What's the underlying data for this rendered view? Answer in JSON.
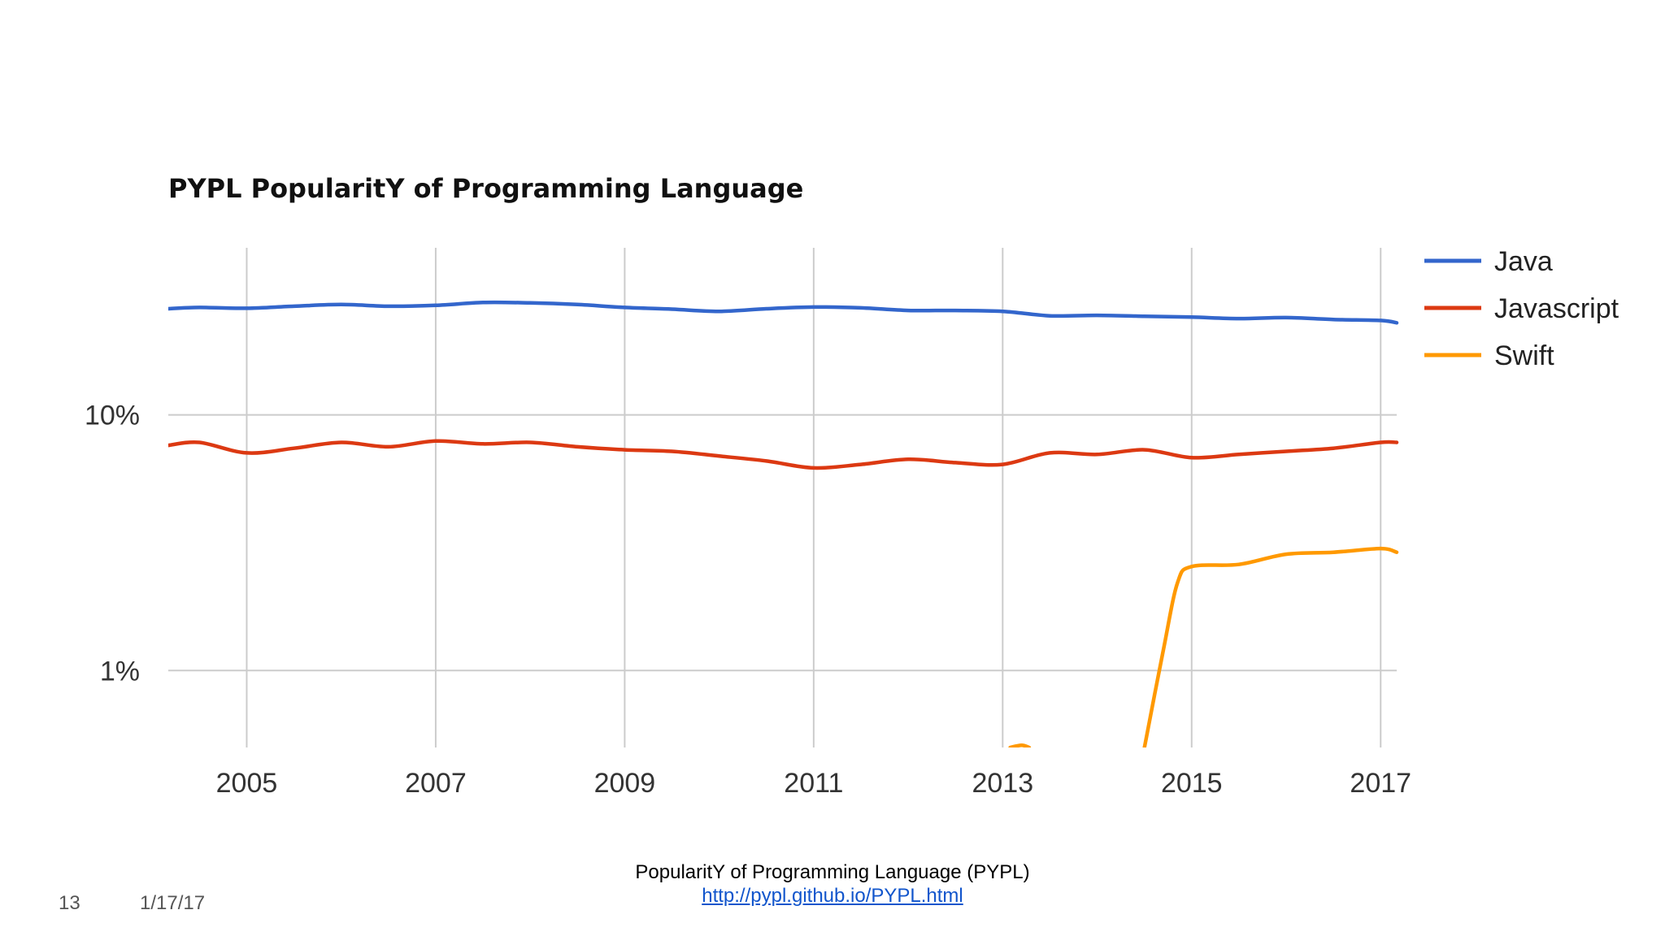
{
  "chart_data": {
    "type": "line",
    "title": "PYPL PopularitY of Programming Language",
    "y_scale": "log",
    "ylim": [
      0.5,
      45
    ],
    "xlim": [
      2004.17,
      2017.17
    ],
    "y_ticks": [
      {
        "value": 1,
        "label": "1%"
      },
      {
        "value": 10,
        "label": "10%"
      }
    ],
    "x_ticks": [
      {
        "value": 2005,
        "label": "2005"
      },
      {
        "value": 2007,
        "label": "2007"
      },
      {
        "value": 2009,
        "label": "2009"
      },
      {
        "value": 2011,
        "label": "2011"
      },
      {
        "value": 2013,
        "label": "2013"
      },
      {
        "value": 2015,
        "label": "2015"
      },
      {
        "value": 2017,
        "label": "2017"
      }
    ],
    "grid": true,
    "legend": "right",
    "series": [
      {
        "name": "Java",
        "color": "#3366cc",
        "points": [
          [
            2004.17,
            26.0
          ],
          [
            2004.5,
            26.3
          ],
          [
            2005.0,
            26.1
          ],
          [
            2005.5,
            26.6
          ],
          [
            2006.0,
            27.0
          ],
          [
            2006.5,
            26.6
          ],
          [
            2007.0,
            26.8
          ],
          [
            2007.5,
            27.5
          ],
          [
            2008.0,
            27.4
          ],
          [
            2008.5,
            27.0
          ],
          [
            2009.0,
            26.3
          ],
          [
            2009.5,
            25.9
          ],
          [
            2010.0,
            25.4
          ],
          [
            2010.5,
            26.0
          ],
          [
            2011.0,
            26.4
          ],
          [
            2011.5,
            26.2
          ],
          [
            2012.0,
            25.6
          ],
          [
            2012.5,
            25.6
          ],
          [
            2013.0,
            25.4
          ],
          [
            2013.5,
            24.4
          ],
          [
            2014.0,
            24.5
          ],
          [
            2014.5,
            24.3
          ],
          [
            2015.0,
            24.1
          ],
          [
            2015.5,
            23.8
          ],
          [
            2016.0,
            24.0
          ],
          [
            2016.5,
            23.6
          ],
          [
            2017.0,
            23.4
          ],
          [
            2017.17,
            22.9
          ]
        ]
      },
      {
        "name": "Javascript",
        "color": "#dc3912",
        "points": [
          [
            2004.17,
            7.6
          ],
          [
            2004.5,
            7.8
          ],
          [
            2005.0,
            7.1
          ],
          [
            2005.5,
            7.4
          ],
          [
            2006.0,
            7.8
          ],
          [
            2006.5,
            7.5
          ],
          [
            2007.0,
            7.9
          ],
          [
            2007.5,
            7.7
          ],
          [
            2008.0,
            7.8
          ],
          [
            2008.5,
            7.5
          ],
          [
            2009.0,
            7.3
          ],
          [
            2009.5,
            7.2
          ],
          [
            2010.0,
            6.9
          ],
          [
            2010.5,
            6.6
          ],
          [
            2011.0,
            6.2
          ],
          [
            2011.5,
            6.4
          ],
          [
            2012.0,
            6.7
          ],
          [
            2012.5,
            6.5
          ],
          [
            2013.0,
            6.4
          ],
          [
            2013.5,
            7.1
          ],
          [
            2014.0,
            7.0
          ],
          [
            2014.5,
            7.3
          ],
          [
            2015.0,
            6.8
          ],
          [
            2015.5,
            7.0
          ],
          [
            2016.0,
            7.2
          ],
          [
            2016.5,
            7.4
          ],
          [
            2017.0,
            7.8
          ],
          [
            2017.17,
            7.8
          ]
        ]
      },
      {
        "name": "Swift",
        "color": "#ff9900",
        "points": [
          [
            2013.08,
            0.5
          ],
          [
            2013.2,
            0.51
          ],
          [
            2013.28,
            0.5
          ],
          null,
          [
            2014.5,
            0.5
          ],
          [
            2014.7,
            1.2
          ],
          [
            2014.85,
            2.2
          ],
          [
            2015.0,
            2.55
          ],
          [
            2015.5,
            2.6
          ],
          [
            2016.0,
            2.85
          ],
          [
            2016.5,
            2.9
          ],
          [
            2017.0,
            3.0
          ],
          [
            2017.17,
            2.9
          ]
        ]
      }
    ]
  },
  "footer": {
    "caption": "PopularitY of Programming Language (PYPL)",
    "link": "http://pypl.github.io/PYPL.html",
    "slide_number": "13",
    "date": "1/17/17"
  }
}
